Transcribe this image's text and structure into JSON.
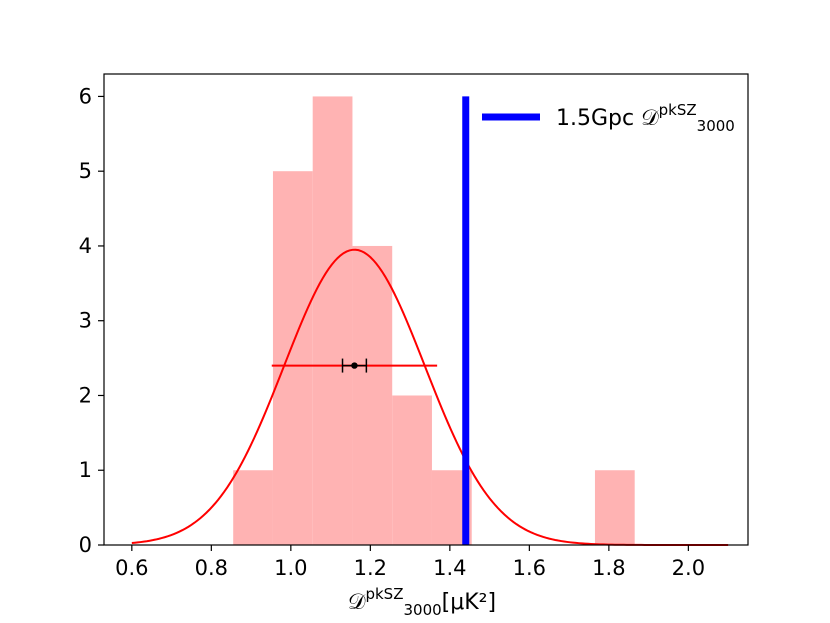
{
  "chart_data": {
    "type": "histogram",
    "title": "",
    "xlabel": "𝒟₃₀₀₀^pkSZ[μK²]",
    "xlabel_parts": {
      "main": "𝒟",
      "sup": "pkSZ",
      "sub": "3000",
      "unit": "[μK²]"
    },
    "ylabel": "",
    "xlim": [
      0.53,
      2.15
    ],
    "ylim": [
      0,
      6.3
    ],
    "xticks": [
      0.6,
      0.8,
      1.0,
      1.2,
      1.4,
      1.6,
      1.8,
      2.0
    ],
    "yticks": [
      0,
      1,
      2,
      3,
      4,
      5,
      6
    ],
    "grid": false,
    "histogram": {
      "color": "#ffb3b3",
      "bins": [
        {
          "x0": 0.855,
          "x1": 0.955,
          "count": 1
        },
        {
          "x0": 0.955,
          "x1": 1.055,
          "count": 5
        },
        {
          "x0": 1.055,
          "x1": 1.155,
          "count": 6
        },
        {
          "x0": 1.155,
          "x1": 1.255,
          "count": 4
        },
        {
          "x0": 1.255,
          "x1": 1.355,
          "count": 2
        },
        {
          "x0": 1.355,
          "x1": 1.455,
          "count": 1
        },
        {
          "x0": 1.765,
          "x1": 1.865,
          "count": 1
        }
      ]
    },
    "gaussian_fit": {
      "color": "#ff0000",
      "mean": 1.16,
      "sigma": 0.177,
      "amplitude": 3.95,
      "x_range": [
        0.6,
        2.1
      ]
    },
    "fwhm_line": {
      "color": "#ff0000",
      "x0": 0.952,
      "x1": 1.368,
      "y": 2.4
    },
    "mean_marker": {
      "color": "#000000",
      "x": 1.16,
      "y": 2.4,
      "err": 0.03
    },
    "reference_line": {
      "color": "#0000ff",
      "x": 1.44,
      "y0": 0,
      "y1": 6
    },
    "legend": {
      "placement": "top-right",
      "label_main": "1.5Gpc 𝒟",
      "label_sup": "pkSZ",
      "label_sub": "3000",
      "color": "#0000ff"
    }
  }
}
